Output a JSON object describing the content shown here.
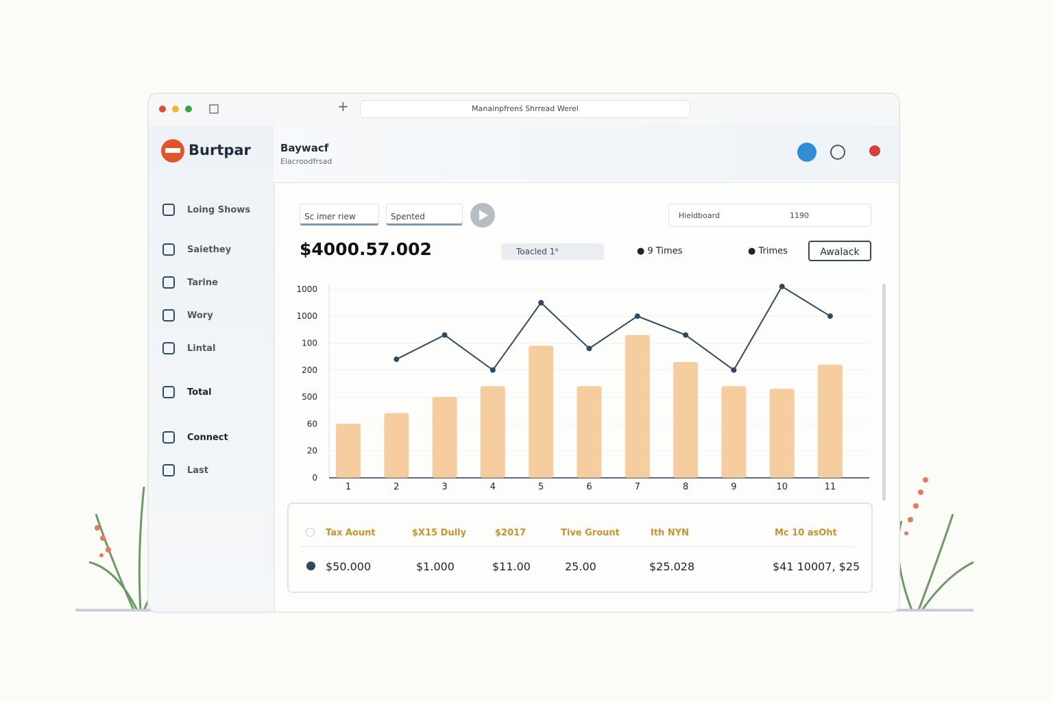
{
  "window": {
    "address": "Manainpfrenś Shrread Werel"
  },
  "brand": "Burtpar",
  "header": {
    "title": "Baywacf",
    "subtitle": "Elacroodfrsad"
  },
  "sidebar": [
    "Loing Shows",
    "Saiethey",
    "Tarine",
    "Wory",
    "Lintal",
    "Total",
    "Connect",
    "Last"
  ],
  "toolbar": {
    "inputs": [
      "Sc imer riew",
      "Spented"
    ],
    "search": "Hieldboard",
    "search_value": "1190"
  },
  "summary": {
    "amount": "$4000.57.002",
    "chip": "Toacled 1⁹",
    "legend_a": "9 Times",
    "legend_b": "Trimes",
    "button": "Awalack"
  },
  "chart_data": {
    "type": "bar",
    "categories": [
      "1",
      "2",
      "3",
      "4",
      "5",
      "6",
      "7",
      "8",
      "9",
      "10",
      "11"
    ],
    "series": [
      {
        "type": "bar",
        "color": "#f5c48e",
        "values": [
          2.0,
          2.4,
          3.0,
          3.4,
          4.9,
          3.4,
          5.3,
          4.3,
          3.4,
          3.3,
          4.2
        ]
      },
      {
        "type": "line",
        "color": "#2f4a5e",
        "values": [
          null,
          4.4,
          5.3,
          4.0,
          6.5,
          4.8,
          6.0,
          5.3,
          4.0,
          7.1,
          6.0
        ]
      }
    ],
    "ylim": [
      0,
      7.2
    ],
    "yticks": [
      {
        "value": 0,
        "label": "0"
      },
      {
        "value": 1,
        "label": "20"
      },
      {
        "value": 2,
        "label": "60"
      },
      {
        "value": 3,
        "label": "500"
      },
      {
        "value": 4,
        "label": "200"
      },
      {
        "value": 5,
        "label": "100"
      },
      {
        "value": 6,
        "label": "1000"
      },
      {
        "value": 7,
        "label": "1000"
      }
    ],
    "grid": true
  },
  "table": {
    "headers": [
      "Tax Aount",
      "$X15 Dully",
      "$2017",
      "Tive Grount",
      "Ith NYN",
      "Mc 10 asOht"
    ],
    "row": [
      "$50.000",
      "$1.000",
      "$11.00",
      "25.00",
      "$25.028",
      "$41 10007, $25"
    ]
  }
}
